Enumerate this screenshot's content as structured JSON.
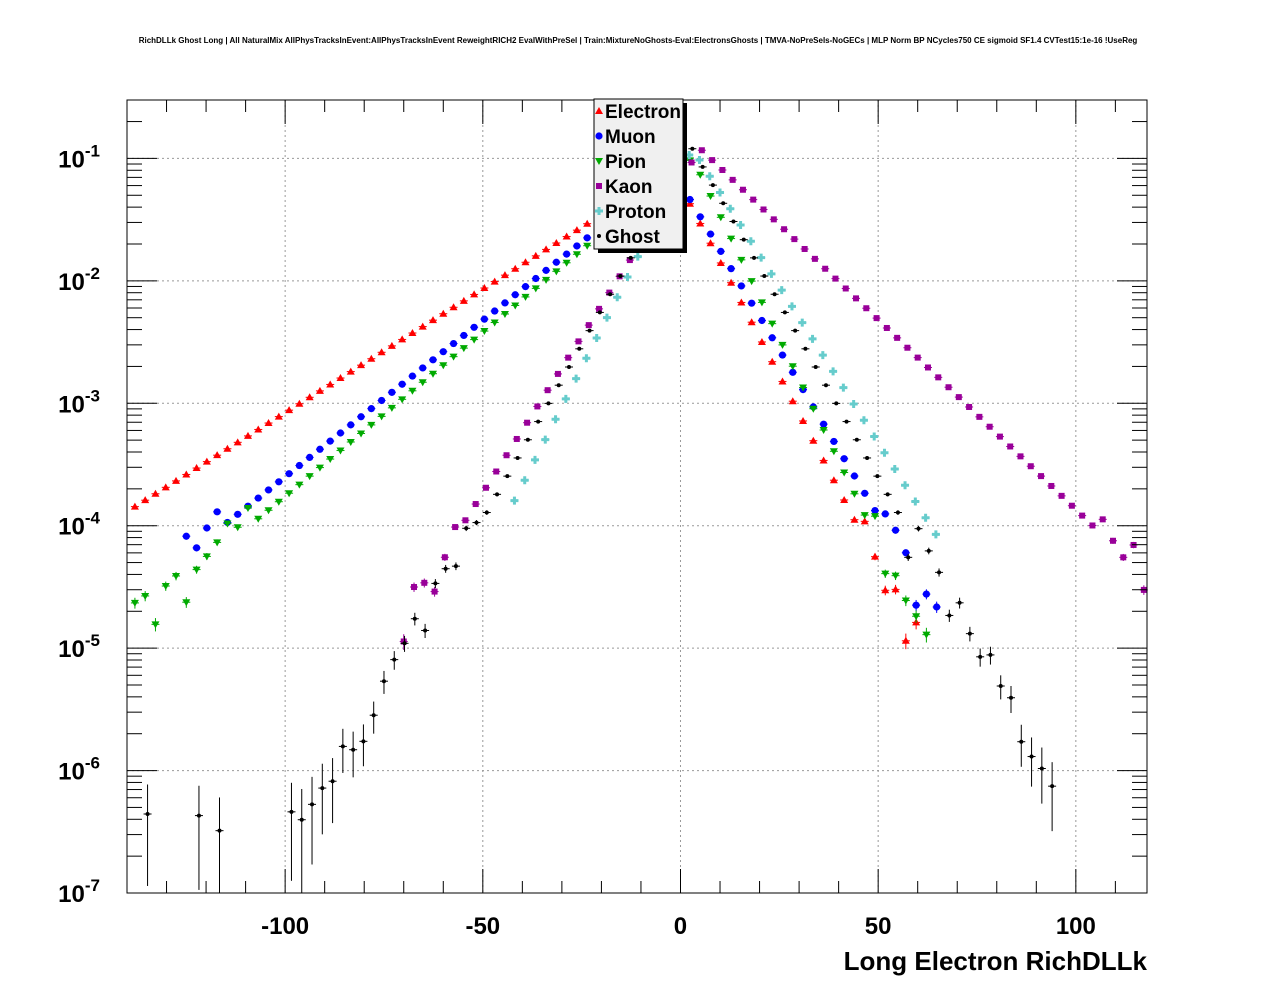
{
  "chart_data": {
    "type": "scatter",
    "title": "RichDLLk Ghost Long | All NaturalMix AllPhysTracksInEvent:AllPhysTracksInEvent ReweightRICH2 EvalWithPreSel | Train:MixtureNoGhosts-Eval:ElectronsGhosts | TMVA-NoPreSels-NoGECs | MLP Norm BP NCycles750 CE sigmoid SF1.4 CVTest15:1e-16 !UseReg",
    "xlabel": "Long Electron RichDLLk",
    "ylabel": "",
    "xlim": [
      -140,
      118
    ],
    "ylim": [
      1e-07,
      0.3
    ],
    "yscale": "log",
    "grid": true,
    "legend_position": "top-center",
    "x_ticks": [
      -100,
      -50,
      0,
      50,
      100
    ],
    "y_ticks": [
      {
        "value": 1e-07,
        "base": "10",
        "exp": "-7"
      },
      {
        "value": 1e-06,
        "base": "10",
        "exp": "-6"
      },
      {
        "value": 1e-05,
        "base": "10",
        "exp": "-5"
      },
      {
        "value": 0.0001,
        "base": "10",
        "exp": "-4"
      },
      {
        "value": 0.001,
        "base": "10",
        "exp": "-3"
      },
      {
        "value": 0.01,
        "base": "10",
        "exp": "-2"
      },
      {
        "value": 0.1,
        "base": "10",
        "exp": "-1"
      }
    ],
    "series": [
      {
        "name": "Electron",
        "color": "#ff0000",
        "marker": "triangle-up",
        "center": -2,
        "ls": 21.5,
        "rs": 7.0,
        "peak": 0.08,
        "xmin": -138,
        "xmax": 60
      },
      {
        "name": "Muon",
        "color": "#0000ff",
        "marker": "circle",
        "center": -2,
        "ls": 17.0,
        "rs": 8.0,
        "peak": 0.08,
        "xmin": -125,
        "xmax": 65
      },
      {
        "name": "Pion",
        "color": "#00aa00",
        "marker": "triangle-down",
        "center": 3,
        "ls": 16.2,
        "rs": 6.5,
        "peak": 0.1,
        "xmin": -138,
        "xmax": 63
      },
      {
        "name": "Kaon",
        "color": "#990099",
        "marker": "square",
        "center": 5,
        "ls": 8.5,
        "rs": 14.0,
        "peak": 0.12,
        "xmin": -70,
        "xmax": 118
      },
      {
        "name": "Proton",
        "color": "#66cccc",
        "marker": "cross",
        "center": 3,
        "ls": 6.8,
        "rs": 8.5,
        "peak": 0.12,
        "xmin": -42,
        "xmax": 66
      },
      {
        "name": "Ghost",
        "color": "#000000",
        "marker": "star",
        "center": 3,
        "ls": 7.6,
        "rs": 7.6,
        "peak": 0.12,
        "xmin": -140,
        "xmax": 95
      }
    ]
  }
}
